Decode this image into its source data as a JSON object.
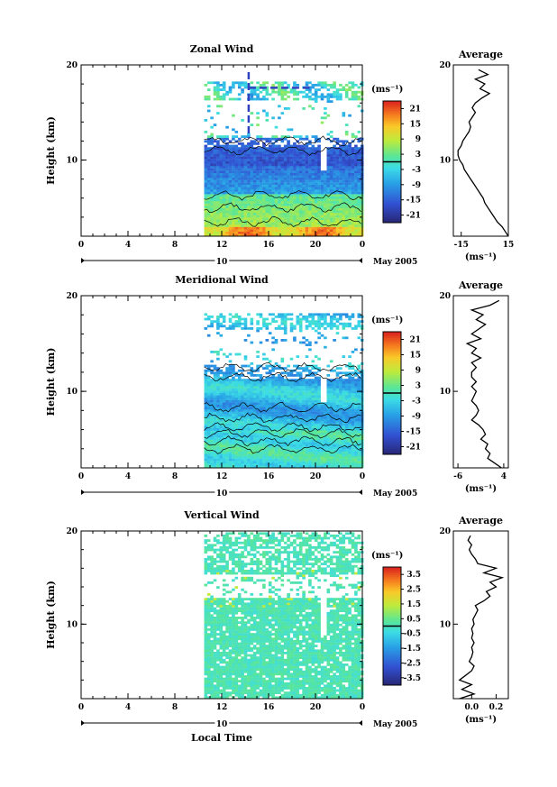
{
  "figure": {
    "local_time_label": "Local Time",
    "date_label": "May 2005",
    "day_label": "10"
  },
  "chart_data": [
    {
      "type": "heatmap",
      "title": "Zonal Wind",
      "ylabel": "Height (km)",
      "yticks": [
        "10",
        "20"
      ],
      "ylim": [
        2,
        20
      ],
      "xticks": [
        "0",
        "4",
        "8",
        "12",
        "16",
        "20",
        "0"
      ],
      "xlim": [
        0,
        24
      ],
      "data_start_hour": 10.5,
      "colorbar": {
        "unit": "(ms⁻¹)",
        "ticks": [
          "21",
          "15",
          "9",
          "3",
          "-3",
          "-9",
          "-15",
          "-21"
        ],
        "range": [
          -24,
          24
        ]
      },
      "profile_ranges": [
        [
          2.5,
          9.5,
          -15
        ],
        [
          9.5,
          12.5,
          -20
        ],
        [
          12.5,
          16,
          0
        ],
        [
          16,
          18.5,
          5
        ],
        [
          3,
          6.5,
          5
        ],
        [
          2,
          3,
          15
        ]
      ],
      "average": {
        "title": "Average",
        "xticks": [
          "-15",
          "15"
        ],
        "xlim": [
          -20,
          15
        ],
        "xlabel": "(ms⁻¹)",
        "height_km": [
          2.0,
          2.5,
          3.0,
          3.5,
          4.0,
          4.5,
          5.0,
          5.5,
          6.0,
          6.5,
          7.0,
          7.5,
          8.0,
          8.5,
          9.0,
          9.5,
          10.0,
          10.5,
          11.0,
          11.5,
          12.0,
          12.5,
          13.0,
          13.5,
          14.0,
          14.5,
          15.0,
          15.5,
          16.0,
          16.5,
          17.0,
          17.5,
          18.0,
          18.5,
          19.0,
          19.5
        ],
        "values": [
          15,
          13,
          11,
          8,
          6,
          4,
          2,
          0,
          -1,
          -3,
          -5,
          -7,
          -9,
          -11,
          -13,
          -14,
          -16,
          -17,
          -17,
          -15,
          -14,
          -12,
          -10,
          -9,
          -10,
          -8,
          -6,
          -8,
          -6,
          -2,
          3,
          -3,
          0,
          -6,
          2,
          -4
        ]
      }
    },
    {
      "type": "heatmap",
      "title": "Meridional Wind",
      "ylabel": "Height (km)",
      "yticks": [
        "10",
        "20"
      ],
      "ylim": [
        2,
        20
      ],
      "xticks": [
        "0",
        "4",
        "8",
        "12",
        "16",
        "20",
        "0"
      ],
      "xlim": [
        0,
        24
      ],
      "data_start_hour": 10.5,
      "colorbar": {
        "unit": "(ms⁻¹)",
        "ticks": [
          "21",
          "15",
          "9",
          "3",
          "-3",
          "-9",
          "-15",
          "-21"
        ],
        "range": [
          -24,
          24
        ]
      },
      "average": {
        "title": "Average",
        "xticks": [
          "-6",
          "4"
        ],
        "xlim": [
          -7,
          5
        ],
        "xlabel": "(ms⁻¹)",
        "height_km": [
          2.0,
          2.5,
          3.0,
          3.5,
          4.0,
          4.5,
          5.0,
          5.5,
          6.0,
          6.5,
          7.0,
          7.5,
          8.0,
          8.5,
          9.0,
          9.5,
          10.0,
          10.5,
          11.0,
          11.5,
          12.0,
          12.5,
          13.0,
          13.5,
          14.0,
          14.5,
          15.0,
          15.5,
          16.0,
          16.5,
          17.0,
          17.5,
          18.0,
          18.5,
          19.0,
          19.5
        ],
        "values": [
          3.5,
          2,
          0.5,
          1,
          0,
          0.5,
          -1,
          0,
          -0.5,
          -1.5,
          -3,
          -2,
          -1.5,
          -2,
          -3,
          -2.5,
          -2,
          -3,
          -2,
          -3,
          -3,
          -2,
          -3,
          -1,
          -3,
          -2,
          -4,
          -1,
          -3,
          -1.5,
          0,
          -2,
          -0.5,
          -3,
          1,
          3
        ]
      }
    },
    {
      "type": "heatmap",
      "title": "Vertical Wind",
      "ylabel": "Height (km)",
      "yticks": [
        "10",
        "20"
      ],
      "ylim": [
        2,
        20
      ],
      "xticks": [
        "0",
        "4",
        "8",
        "12",
        "16",
        "20",
        "0"
      ],
      "xlim": [
        0,
        24
      ],
      "data_start_hour": 10.5,
      "colorbar": {
        "unit": "(ms⁻¹)",
        "ticks": [
          "3.5",
          "2.5",
          "1.5",
          "0.5",
          "-0.5",
          "-1.5",
          "-2.5",
          "-3.5"
        ],
        "range": [
          -4,
          4
        ]
      },
      "average": {
        "title": "Average",
        "xticks": [
          "0.0",
          "0.2"
        ],
        "xlim": [
          -0.15,
          0.3
        ],
        "xlabel": "(ms⁻¹)",
        "height_km": [
          2.0,
          2.5,
          3.0,
          3.5,
          4.0,
          4.5,
          5.0,
          5.5,
          6.0,
          6.5,
          7.0,
          7.5,
          8.0,
          8.5,
          9.0,
          9.5,
          10.0,
          10.5,
          11.0,
          11.5,
          12.0,
          12.5,
          13.0,
          13.5,
          14.0,
          14.5,
          15.0,
          15.5,
          16.0,
          16.5,
          17.0,
          17.5,
          18.0,
          18.5,
          19.0,
          19.5
        ],
        "values": [
          -0.1,
          0.02,
          -0.08,
          0.0,
          -0.1,
          -0.05,
          0.0,
          0.02,
          -0.02,
          0.0,
          0.01,
          0.0,
          0.02,
          0.0,
          0.01,
          0.0,
          0.02,
          0.01,
          0.03,
          0.05,
          0.03,
          0.1,
          0.15,
          0.12,
          0.2,
          0.15,
          0.25,
          0.1,
          0.2,
          0.05,
          0.03,
          0.0,
          -0.02,
          0.0,
          -0.03,
          -0.01
        ]
      }
    }
  ]
}
